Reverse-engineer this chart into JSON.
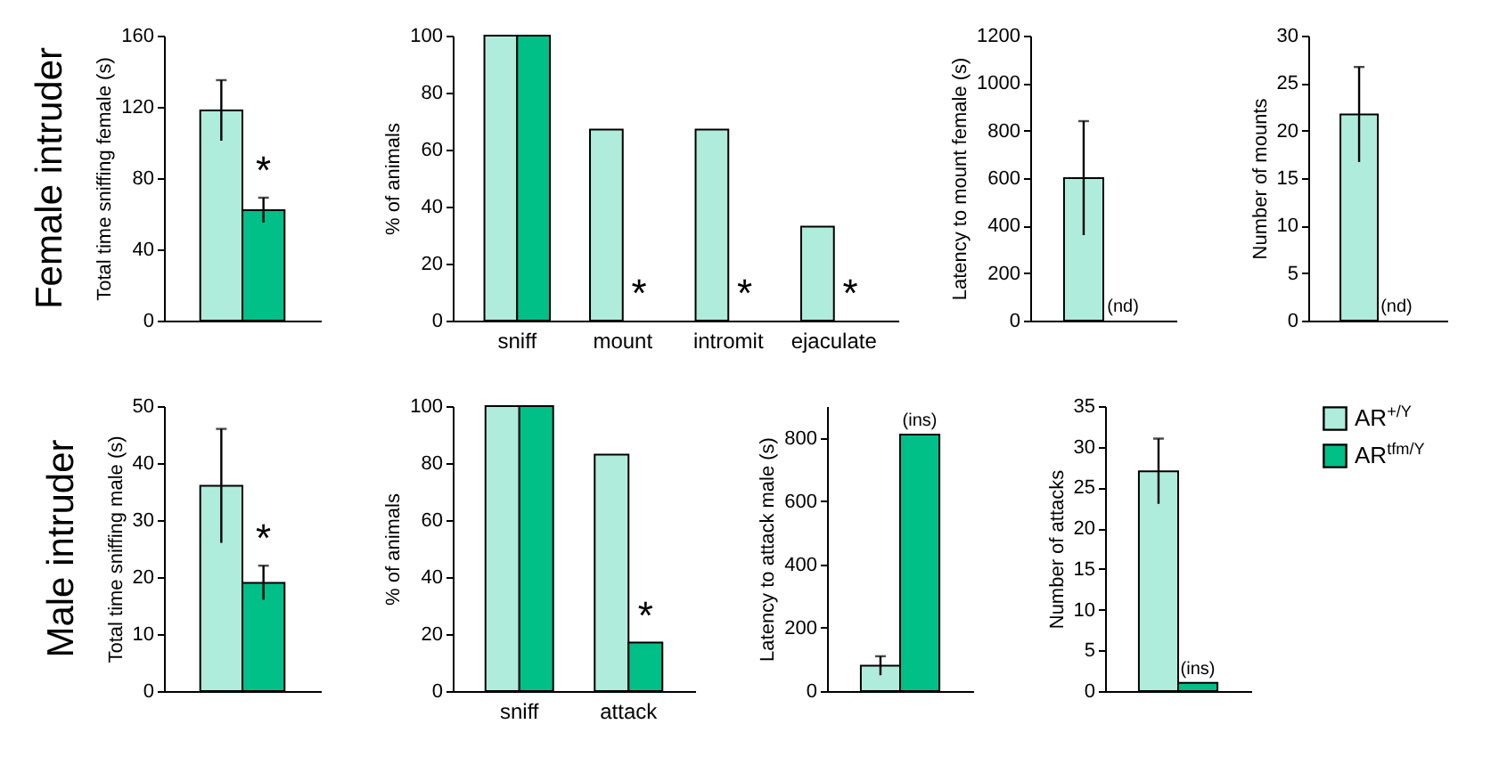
{
  "chart_data": [
    {
      "type": "bar",
      "title": "Female intruder",
      "ylabel": "Total time sniffing female (s)",
      "categories": [
        null
      ],
      "ylim": [
        0,
        160
      ],
      "yticks": [
        0,
        40,
        80,
        120,
        160
      ],
      "series": [
        {
          "color": "#b0ecdb",
          "values": [
            118
          ],
          "errors": [
            17
          ]
        },
        {
          "color": "#00bf87",
          "values": [
            62
          ],
          "errors": [
            7
          ]
        }
      ],
      "annotations": [
        "*"
      ]
    },
    {
      "type": "bar",
      "ylabel": "% of animals",
      "categories": [
        "sniff",
        "mount",
        "intromit",
        "ejaculate"
      ],
      "ylim": [
        0,
        100
      ],
      "yticks": [
        0,
        20,
        40,
        60,
        80,
        100
      ],
      "series": [
        {
          "color": "#b0ecdb",
          "values": [
            100,
            67,
            67,
            33
          ]
        },
        {
          "color": "#00bf87",
          "values": [
            100,
            0,
            0,
            0
          ]
        }
      ],
      "annotations": [
        "*",
        "*",
        "*"
      ]
    },
    {
      "type": "bar",
      "ylabel": "Latency to mount female (s)",
      "categories": [
        null
      ],
      "ylim": [
        0,
        1200
      ],
      "yticks": [
        0,
        200,
        400,
        600,
        800,
        1000,
        1200
      ],
      "series": [
        {
          "color": "#b0ecdb",
          "values": [
            600
          ],
          "errors": [
            240
          ]
        },
        {
          "color": "#00bf87",
          "values": [
            null
          ]
        }
      ],
      "annotations": [
        "(nd)"
      ]
    },
    {
      "type": "bar",
      "ylabel": "Number of mounts",
      "categories": [
        null
      ],
      "ylim": [
        0,
        30
      ],
      "yticks": [
        0,
        5,
        10,
        15,
        20,
        25,
        30
      ],
      "series": [
        {
          "color": "#b0ecdb",
          "values": [
            21.7
          ],
          "errors": [
            5
          ]
        },
        {
          "color": "#00bf87",
          "values": [
            null
          ]
        }
      ],
      "annotations": [
        "(nd)"
      ]
    },
    {
      "type": "bar",
      "title": "Male intruder",
      "ylabel": "Total time sniffing male (s)",
      "categories": [
        null
      ],
      "ylim": [
        0,
        50
      ],
      "yticks": [
        0,
        10,
        20,
        30,
        40,
        50
      ],
      "series": [
        {
          "color": "#b0ecdb",
          "values": [
            36
          ],
          "errors": [
            10
          ]
        },
        {
          "color": "#00bf87",
          "values": [
            19
          ],
          "errors": [
            3
          ]
        }
      ],
      "annotations": [
        "*"
      ]
    },
    {
      "type": "bar",
      "ylabel": "% of animals",
      "categories": [
        "sniff",
        "attack"
      ],
      "ylim": [
        0,
        100
      ],
      "yticks": [
        0,
        20,
        40,
        60,
        80,
        100
      ],
      "series": [
        {
          "color": "#b0ecdb",
          "values": [
            100,
            83
          ]
        },
        {
          "color": "#00bf87",
          "values": [
            100,
            17
          ]
        }
      ],
      "annotations": [
        "*"
      ]
    },
    {
      "type": "bar",
      "ylabel": "Latency to attack male (s)",
      "categories": [
        null
      ],
      "ylim": [
        0,
        900
      ],
      "yticks": [
        0,
        200,
        400,
        600,
        800
      ],
      "series": [
        {
          "color": "#b0ecdb",
          "values": [
            80
          ],
          "errors": [
            30
          ]
        },
        {
          "color": "#00bf87",
          "values": [
            810
          ]
        }
      ],
      "annotations": [
        "(ins)"
      ]
    },
    {
      "type": "bar",
      "ylabel": "Number of attacks",
      "categories": [
        null
      ],
      "ylim": [
        0,
        35
      ],
      "yticks": [
        0,
        5,
        10,
        15,
        20,
        25,
        30,
        35
      ],
      "legend": "right",
      "series": [
        {
          "name": "AR$^{+/Y}$",
          "color": "#b0ecdb",
          "values": [
            27
          ],
          "errors": [
            4
          ]
        },
        {
          "name": "AR$^{tfm/Y}$",
          "color": "#00bf87",
          "values": [
            1
          ]
        }
      ],
      "annotations": [
        "(ins)"
      ]
    }
  ]
}
